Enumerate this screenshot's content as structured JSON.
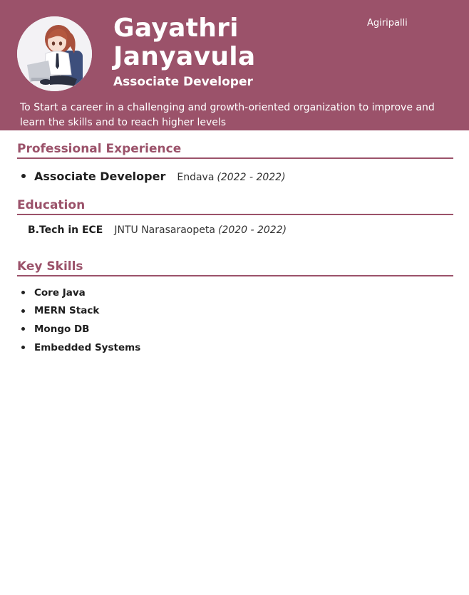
{
  "header": {
    "name": "Gayathri Janyavula",
    "title": "Associate Developer",
    "location": "Agiripalli",
    "objective": "To Start a career in a challenging and growth-oriented organization to improve and learn the skills and to reach higher levels"
  },
  "experience": {
    "heading": "Professional Experience",
    "items": [
      {
        "role": "Associate Developer",
        "company": "Endava",
        "dates": "(2022 - 2022)"
      }
    ]
  },
  "education": {
    "heading": "Education",
    "items": [
      {
        "degree": "B.Tech in ECE",
        "school": "JNTU Narasaraopeta",
        "dates": "(2020 - 2022)"
      }
    ]
  },
  "skills": {
    "heading": "Key Skills",
    "items": [
      "Core Java",
      "MERN Stack",
      "Mongo DB",
      "Embedded Systems"
    ]
  },
  "colors": {
    "accent": "#9b526a",
    "header_text": "#ffffff"
  }
}
